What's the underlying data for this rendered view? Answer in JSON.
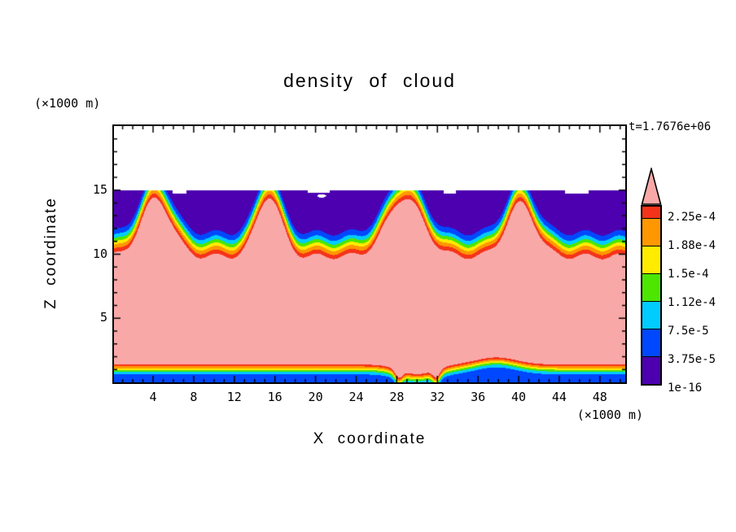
{
  "title": "density of cloud",
  "time_label": "t=1.7676e+06",
  "x_axis": {
    "label": "X coordinate",
    "units": "(×1000 m)",
    "ticks": [
      "4",
      "8",
      "12",
      "16",
      "20",
      "24",
      "28",
      "32",
      "36",
      "40",
      "44",
      "48"
    ]
  },
  "z_axis": {
    "label": "Z coordinate",
    "units": "(×1000 m)",
    "ticks": [
      "5",
      "10",
      "15"
    ]
  },
  "colorbar": {
    "labels_top_to_bottom": [
      "2.25e-4",
      "1.88e-4",
      "1.5e-4",
      "1.12e-4",
      "7.5e-5",
      "3.75e-5",
      "1e-16"
    ],
    "band_colors_top_to_bottom": [
      "#F5331A",
      "#FF9800",
      "#FFEC00",
      "#4CE600",
      "#00CCFF",
      "#0048FF",
      "#4C00B0"
    ],
    "overflow_color": "#F9A8A8"
  },
  "chart_data": {
    "type": "heatmap",
    "title": "density of cloud",
    "xlabel": "X coordinate",
    "ylabel": "Z coordinate",
    "units": "(×1000 m)",
    "time_annotation": "t=1.7676e+06",
    "xlim": [
      0.15,
      50.5
    ],
    "zlim": [
      0,
      20
    ],
    "x_ticks": [
      4,
      8,
      12,
      16,
      20,
      24,
      28,
      32,
      36,
      40,
      44,
      48
    ],
    "z_ticks": [
      5,
      10,
      15
    ],
    "levels": [
      1e-16,
      3.75e-05,
      7.5e-05,
      0.0001125,
      0.00015,
      0.0001875,
      0.000225,
      0.000255
    ],
    "band_colors": [
      "#4C00B0",
      "#0048FF",
      "#00CCFF",
      "#4CE600",
      "#FFEC00",
      "#FF9800",
      "#F5331A"
    ],
    "overflow_color": "#F9A8A8",
    "background": "#FFFFFF",
    "field_model": {
      "amplitude": 0.0003,
      "cloud_top_base": 10.7,
      "cloud_top_width": 0.5,
      "wiggle": {
        "amp": 0.22,
        "freq": 1.9,
        "phase": 1.0
      },
      "plumes": [
        {
          "x": 4.3,
          "height": 4.5,
          "width": 2.1
        },
        {
          "x": 15.4,
          "height": 4.7,
          "width": 1.7
        },
        {
          "x": 28.8,
          "height": 4.6,
          "width": 2.5
        },
        {
          "x": 40.2,
          "height": 4.1,
          "width": 2.0
        }
      ],
      "cap_z": 15,
      "cap_notches": [
        [
          5.9,
          7.3,
          14.75
        ],
        [
          19.2,
          21.4,
          14.8
        ],
        [
          32.6,
          33.8,
          14.75
        ],
        [
          44.6,
          46.9,
          14.75
        ]
      ],
      "hole": {
        "x": 20.6,
        "z": 14.55,
        "rx": 0.45,
        "rz": 0.13
      },
      "surface_layer": {
        "f0": 4.3e-05,
        "z0": 1.05,
        "width": 0.22,
        "bumps": [
          {
            "x": 37.8,
            "dz": 0.55,
            "width": 2.8
          },
          {
            "x": 30.0,
            "dz": -0.75,
            "width": 2.4
          },
          {
            "x": 28.2,
            "dz": -0.6,
            "width": 0.5
          },
          {
            "x": 31.9,
            "dz": -0.6,
            "width": 0.5
          }
        ]
      }
    }
  }
}
